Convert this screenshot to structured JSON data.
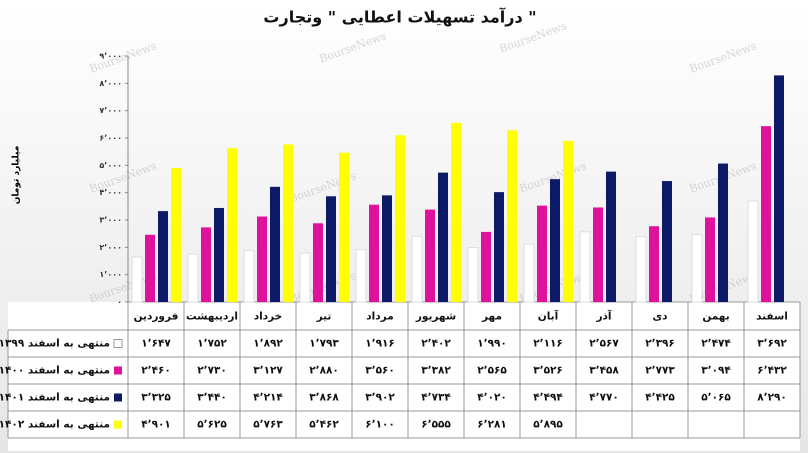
{
  "chart_data": {
    "type": "bar",
    "title": "درآمد تسهیلات اعطایی \" وتجارت \"",
    "y_label": "میلیارد تومان",
    "watermark": "BourseNews",
    "categories": [
      "فروردین",
      "اردیبهشت",
      "خرداد",
      "تیر",
      "مرداد",
      "شهریور",
      "مهر",
      "آبان",
      "آذر",
      "دی",
      "بهمن",
      "اسفند"
    ],
    "series": [
      {
        "name": "منتهی به اسفند ۱۳۹۹",
        "color": "#ffffff",
        "values": [
          1647,
          1752,
          1892,
          1793,
          1916,
          2402,
          1990,
          2116,
          2567,
          2396,
          2474,
          3692
        ],
        "value_labels": [
          "۱٬۶۴۷",
          "۱٬۷۵۲",
          "۱٬۸۹۲",
          "۱٬۷۹۳",
          "۱٬۹۱۶",
          "۲٬۴۰۲",
          "۱٬۹۹۰",
          "۲٬۱۱۶",
          "۲٬۵۶۷",
          "۲٬۳۹۶",
          "۲٬۴۷۴",
          "۳٬۶۹۲"
        ]
      },
      {
        "name": "منتهی به اسفند ۱۴۰۰",
        "color": "#e0119d",
        "values": [
          2460,
          2730,
          3127,
          2880,
          3560,
          3382,
          2565,
          3526,
          3458,
          2773,
          3094,
          6432
        ],
        "value_labels": [
          "۲٬۴۶۰",
          "۲٬۷۳۰",
          "۳٬۱۲۷",
          "۲٬۸۸۰",
          "۳٬۵۶۰",
          "۳٬۳۸۲",
          "۲٬۵۶۵",
          "۳٬۵۲۶",
          "۳٬۴۵۸",
          "۲٬۷۷۳",
          "۳٬۰۹۴",
          "۶٬۴۳۲"
        ]
      },
      {
        "name": "منتهی به اسفند ۱۴۰۱",
        "color": "#0d1a68",
        "values": [
          3325,
          3440,
          4214,
          3868,
          3902,
          4734,
          4020,
          4494,
          4770,
          4425,
          5065,
          8290
        ],
        "value_labels": [
          "۳٬۳۲۵",
          "۳٬۴۴۰",
          "۴٬۲۱۴",
          "۳٬۸۶۸",
          "۳٬۹۰۲",
          "۴٬۷۳۴",
          "۴٬۰۲۰",
          "۴٬۴۹۴",
          "۴٬۷۷۰",
          "۴٬۴۲۵",
          "۵٬۰۶۵",
          "۸٬۲۹۰"
        ]
      },
      {
        "name": "منتهی به اسفند ۱۴۰۲",
        "color": "#ffff00",
        "values": [
          4901,
          5625,
          5763,
          5462,
          6100,
          6555,
          6281,
          5895,
          null,
          null,
          null,
          null
        ],
        "value_labels": [
          "۴٬۹۰۱",
          "۵٬۶۲۵",
          "۵٬۷۶۳",
          "۵٬۴۶۲",
          "۶٬۱۰۰",
          "۶٬۵۵۵",
          "۶٬۲۸۱",
          "۵٬۸۹۵",
          null,
          null,
          null,
          null
        ]
      }
    ],
    "ylim": [
      0,
      9000
    ],
    "yticks": [
      {
        "value": 0,
        "label": "۰"
      },
      {
        "value": 1000,
        "label": "۱٬۰۰۰"
      },
      {
        "value": 2000,
        "label": "۲٬۰۰۰"
      },
      {
        "value": 3000,
        "label": "۳٬۰۰۰"
      },
      {
        "value": 4000,
        "label": "۴٬۰۰۰"
      },
      {
        "value": 5000,
        "label": "۵٬۰۰۰"
      },
      {
        "value": 6000,
        "label": "۶٬۰۰۰"
      },
      {
        "value": 7000,
        "label": "۷٬۰۰۰"
      },
      {
        "value": 8000,
        "label": "۸٬۰۰۰"
      },
      {
        "value": 9000,
        "label": "۹٬۰۰۰"
      }
    ]
  }
}
